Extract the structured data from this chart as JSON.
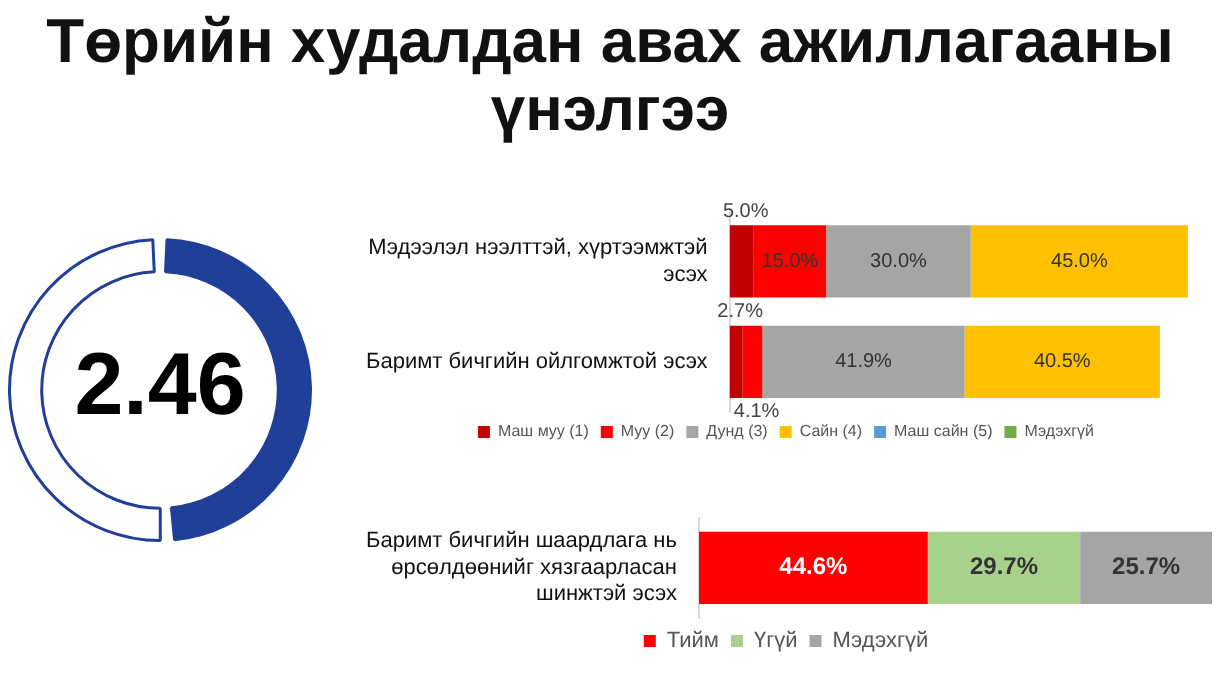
{
  "chart_data": [
    {
      "type": "donut",
      "title": "Төрийн худалдан авах ажиллагааны үнэлгээ",
      "categories": [
        null,
        null
      ],
      "values": [
        49.2,
        50.8
      ],
      "colors": [
        "#1f3f99",
        "#ffffff"
      ],
      "annotations": [
        "2.46"
      ],
      "legend": false
    },
    {
      "type": "bar",
      "orientation": "horizontal",
      "stacked": true,
      "categories": [
        "Мэдээлэл нээлттэй, хүртээмжтэй эсэх",
        "Баримт бичгийн ойлгомжтой эсэх"
      ],
      "tick_labels": "y",
      "legend": "bottom",
      "series": [
        {
          "name": "Маш муу (1)",
          "color": "#c00000",
          "values": [
            5.0,
            2.7
          ],
          "value_labels": [
            "5.0%",
            "2.7%"
          ]
        },
        {
          "name": "Муу (2)",
          "color": "#ff0000",
          "values": [
            15.0,
            4.1
          ],
          "value_labels": [
            "15.0%",
            "4.1%"
          ]
        },
        {
          "name": "Дунд (3)",
          "color": "#a5a5a5",
          "values": [
            30.0,
            41.9
          ],
          "value_labels": [
            "30.0%",
            "41.9%"
          ]
        },
        {
          "name": "Сайн (4)",
          "color": "#ffc000",
          "values": [
            45.0,
            40.5
          ],
          "value_labels": [
            "45.0%",
            "40.5%"
          ]
        },
        {
          "name": "Маш сайн (5)",
          "color": "#5b9bd5",
          "values": [
            null,
            null
          ]
        },
        {
          "name": "Мэдэхгүй",
          "color": "#70ad47",
          "values": [
            null,
            null
          ]
        }
      ]
    },
    {
      "type": "bar",
      "orientation": "horizontal",
      "stacked": true,
      "categories": [
        "Баримт бичгийн шаардлага нь өрсөлдөөнийг хязгаарласан шинжтэй эсэх"
      ],
      "tick_labels": "y",
      "legend": "bottom",
      "series": [
        {
          "name": "Тийм",
          "color": "#ff0000",
          "values": [
            44.6
          ],
          "value_labels": [
            "44.6%"
          ]
        },
        {
          "name": "Үгүй",
          "color": "#a9d18e",
          "values": [
            29.7
          ],
          "value_labels": [
            "29.7%"
          ]
        },
        {
          "name": "Мэдэхгүй",
          "color": "#a5a5a5",
          "values": [
            25.7
          ],
          "value_labels": [
            "25.7%"
          ]
        }
      ]
    }
  ]
}
